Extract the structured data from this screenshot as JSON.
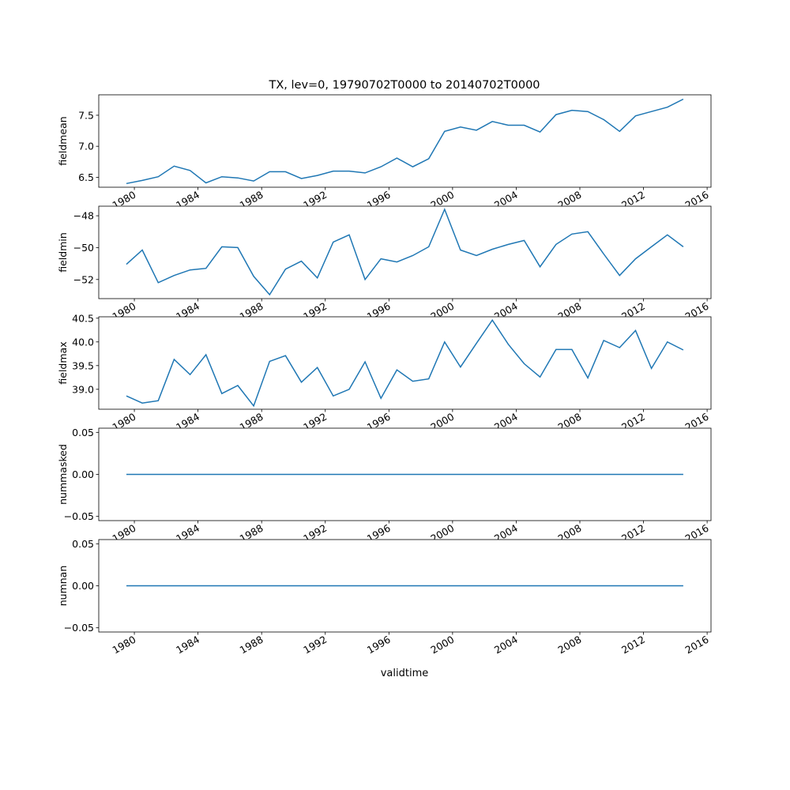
{
  "chart_data": {
    "type": "line",
    "title": "TX, lev=0, 19790702T0000 to 20140702T0000",
    "xlabel": "validtime",
    "x_ticks": [
      "1980",
      "1984",
      "1988",
      "1992",
      "1996",
      "2000",
      "2004",
      "2008",
      "2012",
      "2016"
    ],
    "x": [
      1979,
      1980,
      1981,
      1982,
      1983,
      1984,
      1985,
      1986,
      1987,
      1988,
      1989,
      1990,
      1991,
      1992,
      1993,
      1994,
      1995,
      1996,
      1997,
      1998,
      1999,
      2000,
      2001,
      2002,
      2003,
      2004,
      2005,
      2006,
      2007,
      2008,
      2009,
      2010,
      2011,
      2012,
      2013,
      2014
    ],
    "line_color": "#1f77b4",
    "series": [
      {
        "name": "fieldmean",
        "ylabel": "fieldmean",
        "ylim": [
          6.34,
          7.83
        ],
        "yticks": [
          6.5,
          7.0,
          7.5
        ],
        "ytick_labels": [
          "6.5",
          "7.0",
          "7.5"
        ],
        "values": [
          6.4,
          6.45,
          6.51,
          6.68,
          6.61,
          6.41,
          6.51,
          6.49,
          6.44,
          6.59,
          6.59,
          6.48,
          6.53,
          6.6,
          6.6,
          6.57,
          6.67,
          6.81,
          6.67,
          6.8,
          7.24,
          7.31,
          7.26,
          7.4,
          7.34,
          7.34,
          7.23,
          7.51,
          7.58,
          7.56,
          7.43,
          7.24,
          7.49,
          7.56,
          7.63,
          7.76
        ]
      },
      {
        "name": "fieldmin",
        "ylabel": "fieldmin",
        "ylim": [
          -53.2,
          -47.4
        ],
        "yticks": [
          -52,
          -50,
          -48
        ],
        "ytick_labels": [
          "−52",
          "−50",
          "−48"
        ],
        "values": [
          -51.05,
          -50.15,
          -52.2,
          -51.75,
          -51.4,
          -51.3,
          -49.95,
          -50.0,
          -51.8,
          -52.95,
          -51.35,
          -50.85,
          -51.9,
          -49.65,
          -49.2,
          -52.0,
          -50.7,
          -50.9,
          -50.5,
          -49.95,
          -47.6,
          -50.15,
          -50.5,
          -50.1,
          -49.8,
          -49.55,
          -51.2,
          -49.8,
          -49.15,
          -49.0,
          -50.4,
          -51.75,
          -50.7,
          -49.95,
          -49.2,
          -49.95
        ]
      },
      {
        "name": "fieldmax",
        "ylabel": "fieldmax",
        "ylim": [
          38.58,
          40.53
        ],
        "yticks": [
          39.0,
          39.5,
          40.0,
          40.5
        ],
        "ytick_labels": [
          "39.0",
          "39.5",
          "40.0",
          "40.5"
        ],
        "values": [
          38.86,
          38.71,
          38.76,
          39.63,
          39.31,
          39.73,
          38.91,
          39.08,
          38.65,
          39.59,
          39.71,
          39.15,
          39.46,
          38.86,
          39.0,
          39.58,
          38.81,
          39.41,
          39.17,
          39.22,
          40.0,
          39.47,
          39.97,
          40.46,
          39.95,
          39.54,
          39.26,
          39.84,
          39.84,
          39.24,
          40.03,
          39.88,
          40.24,
          39.44,
          40.0,
          39.83
        ]
      },
      {
        "name": "nummasked",
        "ylabel": "nummasked",
        "ylim": [
          -0.055,
          0.055
        ],
        "yticks": [
          -0.05,
          0,
          0.05
        ],
        "ytick_labels": [
          "−0.05",
          "0.00",
          "0.05"
        ],
        "values": [
          0,
          0,
          0,
          0,
          0,
          0,
          0,
          0,
          0,
          0,
          0,
          0,
          0,
          0,
          0,
          0,
          0,
          0,
          0,
          0,
          0,
          0,
          0,
          0,
          0,
          0,
          0,
          0,
          0,
          0,
          0,
          0,
          0,
          0,
          0,
          0
        ]
      },
      {
        "name": "numnan",
        "ylabel": "numnan",
        "ylim": [
          -0.055,
          0.055
        ],
        "yticks": [
          -0.05,
          0,
          0.05
        ],
        "ytick_labels": [
          "−0.05",
          "0.00",
          "0.05"
        ],
        "values": [
          0,
          0,
          0,
          0,
          0,
          0,
          0,
          0,
          0,
          0,
          0,
          0,
          0,
          0,
          0,
          0,
          0,
          0,
          0,
          0,
          0,
          0,
          0,
          0,
          0,
          0,
          0,
          0,
          0,
          0,
          0,
          0,
          0,
          0,
          0,
          0
        ]
      }
    ]
  }
}
